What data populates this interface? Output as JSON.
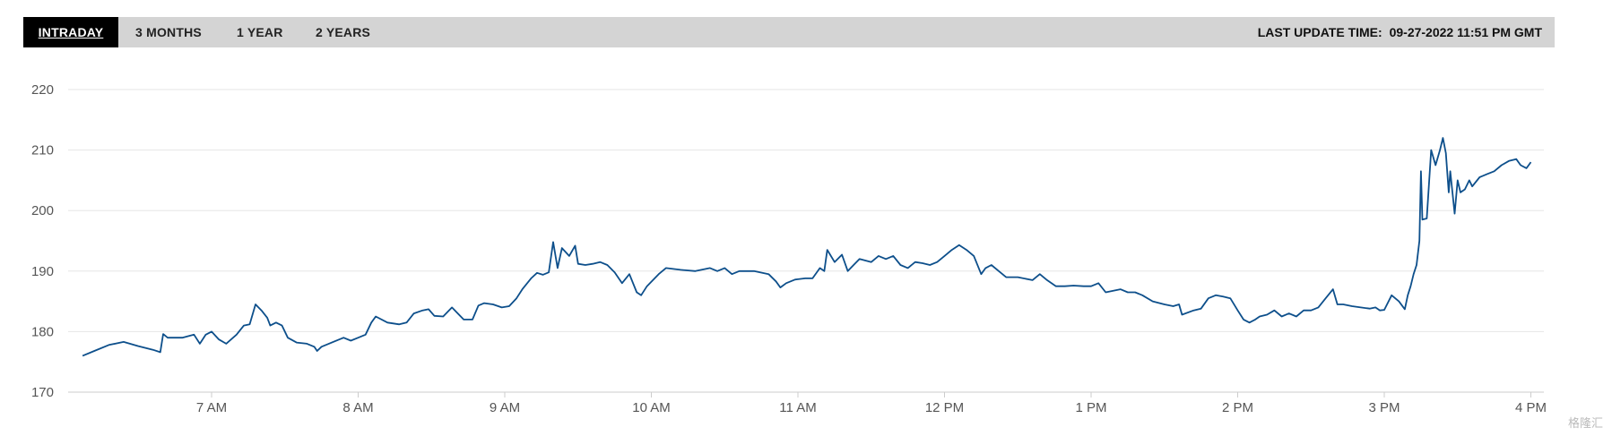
{
  "tabs": [
    {
      "label": "INTRADAY",
      "active": true
    },
    {
      "label": "3 MONTHS",
      "active": false
    },
    {
      "label": "1 YEAR",
      "active": false
    },
    {
      "label": "2 YEARS",
      "active": false
    }
  ],
  "last_update": {
    "label": "LAST UPDATE TIME:",
    "value": "09-27-2022 11:51 PM GMT"
  },
  "watermark": "格隆汇",
  "colors": {
    "line": "#0d4f8b",
    "tabbar": "#d4d4d4",
    "active_tab": "#000000"
  },
  "chart_data": {
    "type": "line",
    "title": "",
    "xlabel": "",
    "ylabel": "",
    "ylim": [
      170,
      220
    ],
    "yticks": [
      170,
      180,
      190,
      200,
      210,
      220
    ],
    "xlim_hours": [
      6.1,
      16.0
    ],
    "xticks": [
      {
        "hour": 7,
        "label": "7 AM"
      },
      {
        "hour": 8,
        "label": "8 AM"
      },
      {
        "hour": 9,
        "label": "9 AM"
      },
      {
        "hour": 10,
        "label": "10 AM"
      },
      {
        "hour": 11,
        "label": "11 AM"
      },
      {
        "hour": 12,
        "label": "12 PM"
      },
      {
        "hour": 13,
        "label": "1 PM"
      },
      {
        "hour": 14,
        "label": "2 PM"
      },
      {
        "hour": 15,
        "label": "3 PM"
      },
      {
        "hour": 16,
        "label": "4 PM"
      }
    ],
    "grid": true,
    "series": [
      {
        "points": [
          [
            6.12,
            176.0
          ],
          [
            6.2,
            176.8
          ],
          [
            6.3,
            177.8
          ],
          [
            6.4,
            178.3
          ],
          [
            6.5,
            177.6
          ],
          [
            6.6,
            177.0
          ],
          [
            6.65,
            176.6
          ],
          [
            6.67,
            179.6
          ],
          [
            6.7,
            179.0
          ],
          [
            6.8,
            179.0
          ],
          [
            6.88,
            179.5
          ],
          [
            6.92,
            178.0
          ],
          [
            6.96,
            179.5
          ],
          [
            7.0,
            180.0
          ],
          [
            7.05,
            178.7
          ],
          [
            7.1,
            178.0
          ],
          [
            7.17,
            179.5
          ],
          [
            7.22,
            181.0
          ],
          [
            7.26,
            181.2
          ],
          [
            7.3,
            184.5
          ],
          [
            7.34,
            183.5
          ],
          [
            7.38,
            182.3
          ],
          [
            7.4,
            181.0
          ],
          [
            7.44,
            181.5
          ],
          [
            7.48,
            181.0
          ],
          [
            7.52,
            179.0
          ],
          [
            7.58,
            178.2
          ],
          [
            7.65,
            178.0
          ],
          [
            7.7,
            177.5
          ],
          [
            7.72,
            176.8
          ],
          [
            7.75,
            177.5
          ],
          [
            7.8,
            178.0
          ],
          [
            7.9,
            179.0
          ],
          [
            7.95,
            178.5
          ],
          [
            8.0,
            179.0
          ],
          [
            8.05,
            179.5
          ],
          [
            8.09,
            181.5
          ],
          [
            8.12,
            182.5
          ],
          [
            8.2,
            181.5
          ],
          [
            8.28,
            181.2
          ],
          [
            8.33,
            181.5
          ],
          [
            8.38,
            183.0
          ],
          [
            8.44,
            183.5
          ],
          [
            8.48,
            183.7
          ],
          [
            8.52,
            182.6
          ],
          [
            8.58,
            182.5
          ],
          [
            8.64,
            184.0
          ],
          [
            8.72,
            182.0
          ],
          [
            8.78,
            182.0
          ],
          [
            8.82,
            184.3
          ],
          [
            8.86,
            184.7
          ],
          [
            8.92,
            184.5
          ],
          [
            8.98,
            184.0
          ],
          [
            9.03,
            184.2
          ],
          [
            9.08,
            185.5
          ],
          [
            9.12,
            187.0
          ],
          [
            9.18,
            188.8
          ],
          [
            9.22,
            189.7
          ],
          [
            9.26,
            189.4
          ],
          [
            9.3,
            189.8
          ],
          [
            9.33,
            194.8
          ],
          [
            9.36,
            190.5
          ],
          [
            9.39,
            193.8
          ],
          [
            9.44,
            192.5
          ],
          [
            9.48,
            194.2
          ],
          [
            9.5,
            191.2
          ],
          [
            9.55,
            191.0
          ],
          [
            9.6,
            191.2
          ],
          [
            9.65,
            191.5
          ],
          [
            9.7,
            191.0
          ],
          [
            9.75,
            189.8
          ],
          [
            9.8,
            188.0
          ],
          [
            9.85,
            189.5
          ],
          [
            9.9,
            186.5
          ],
          [
            9.93,
            186.0
          ],
          [
            9.97,
            187.5
          ],
          [
            10.05,
            189.5
          ],
          [
            10.1,
            190.5
          ],
          [
            10.2,
            190.2
          ],
          [
            10.3,
            190.0
          ],
          [
            10.4,
            190.5
          ],
          [
            10.45,
            190.0
          ],
          [
            10.5,
            190.5
          ],
          [
            10.55,
            189.5
          ],
          [
            10.6,
            190.0
          ],
          [
            10.7,
            190.0
          ],
          [
            10.8,
            189.5
          ],
          [
            10.85,
            188.3
          ],
          [
            10.88,
            187.3
          ],
          [
            10.92,
            188.0
          ],
          [
            10.98,
            188.6
          ],
          [
            11.05,
            188.8
          ],
          [
            11.1,
            188.8
          ],
          [
            11.15,
            190.5
          ],
          [
            11.18,
            190.0
          ],
          [
            11.2,
            193.5
          ],
          [
            11.25,
            191.5
          ],
          [
            11.3,
            192.7
          ],
          [
            11.34,
            190.0
          ],
          [
            11.38,
            191.0
          ],
          [
            11.42,
            192.0
          ],
          [
            11.5,
            191.5
          ],
          [
            11.55,
            192.5
          ],
          [
            11.6,
            192.0
          ],
          [
            11.65,
            192.5
          ],
          [
            11.7,
            191.0
          ],
          [
            11.75,
            190.5
          ],
          [
            11.8,
            191.5
          ],
          [
            11.85,
            191.3
          ],
          [
            11.9,
            191.0
          ],
          [
            11.95,
            191.5
          ],
          [
            12.0,
            192.5
          ],
          [
            12.05,
            193.5
          ],
          [
            12.1,
            194.3
          ],
          [
            12.15,
            193.5
          ],
          [
            12.2,
            192.5
          ],
          [
            12.25,
            189.5
          ],
          [
            12.28,
            190.5
          ],
          [
            12.32,
            191.0
          ],
          [
            12.37,
            190.0
          ],
          [
            12.42,
            189.0
          ],
          [
            12.5,
            189.0
          ],
          [
            12.6,
            188.5
          ],
          [
            12.65,
            189.5
          ],
          [
            12.7,
            188.5
          ],
          [
            12.76,
            187.5
          ],
          [
            12.82,
            187.5
          ],
          [
            12.88,
            187.6
          ],
          [
            12.95,
            187.5
          ],
          [
            13.0,
            187.5
          ],
          [
            13.05,
            188.0
          ],
          [
            13.1,
            186.5
          ],
          [
            13.2,
            187.0
          ],
          [
            13.25,
            186.5
          ],
          [
            13.3,
            186.5
          ],
          [
            13.35,
            186.0
          ],
          [
            13.42,
            185.0
          ],
          [
            13.5,
            184.5
          ],
          [
            13.56,
            184.2
          ],
          [
            13.6,
            184.5
          ],
          [
            13.62,
            182.8
          ],
          [
            13.7,
            183.5
          ],
          [
            13.75,
            183.8
          ],
          [
            13.8,
            185.5
          ],
          [
            13.85,
            186.0
          ],
          [
            13.9,
            185.8
          ],
          [
            13.95,
            185.5
          ],
          [
            14.0,
            183.5
          ],
          [
            14.04,
            182.0
          ],
          [
            14.08,
            181.5
          ],
          [
            14.12,
            182.0
          ],
          [
            14.15,
            182.5
          ],
          [
            14.2,
            182.8
          ],
          [
            14.25,
            183.5
          ],
          [
            14.3,
            182.5
          ],
          [
            14.35,
            183.0
          ],
          [
            14.4,
            182.5
          ],
          [
            14.45,
            183.5
          ],
          [
            14.5,
            183.5
          ],
          [
            14.55,
            184.0
          ],
          [
            14.6,
            185.5
          ],
          [
            14.65,
            187.0
          ],
          [
            14.68,
            184.5
          ],
          [
            14.72,
            184.5
          ],
          [
            14.78,
            184.2
          ],
          [
            14.84,
            184.0
          ],
          [
            14.9,
            183.8
          ],
          [
            14.94,
            184.0
          ],
          [
            14.97,
            183.5
          ],
          [
            15.0,
            183.6
          ],
          [
            15.05,
            186.0
          ],
          [
            15.1,
            185.0
          ],
          [
            15.14,
            183.7
          ],
          [
            15.16,
            186.0
          ],
          [
            15.18,
            187.5
          ],
          [
            15.2,
            189.5
          ],
          [
            15.22,
            191.0
          ],
          [
            15.24,
            195.0
          ],
          [
            15.25,
            206.5
          ],
          [
            15.26,
            198.5
          ],
          [
            15.29,
            198.7
          ],
          [
            15.32,
            210.0
          ],
          [
            15.35,
            207.5
          ],
          [
            15.38,
            210.0
          ],
          [
            15.4,
            212.0
          ],
          [
            15.42,
            209.5
          ],
          [
            15.44,
            203.0
          ],
          [
            15.45,
            206.5
          ],
          [
            15.48,
            199.5
          ],
          [
            15.5,
            205.0
          ],
          [
            15.52,
            203.0
          ],
          [
            15.55,
            203.5
          ],
          [
            15.58,
            205.0
          ],
          [
            15.6,
            204.0
          ],
          [
            15.65,
            205.5
          ],
          [
            15.7,
            206.0
          ],
          [
            15.75,
            206.5
          ],
          [
            15.8,
            207.5
          ],
          [
            15.85,
            208.2
          ],
          [
            15.9,
            208.5
          ],
          [
            15.93,
            207.5
          ],
          [
            15.97,
            207.0
          ],
          [
            16.0,
            208.0
          ]
        ]
      }
    ]
  }
}
